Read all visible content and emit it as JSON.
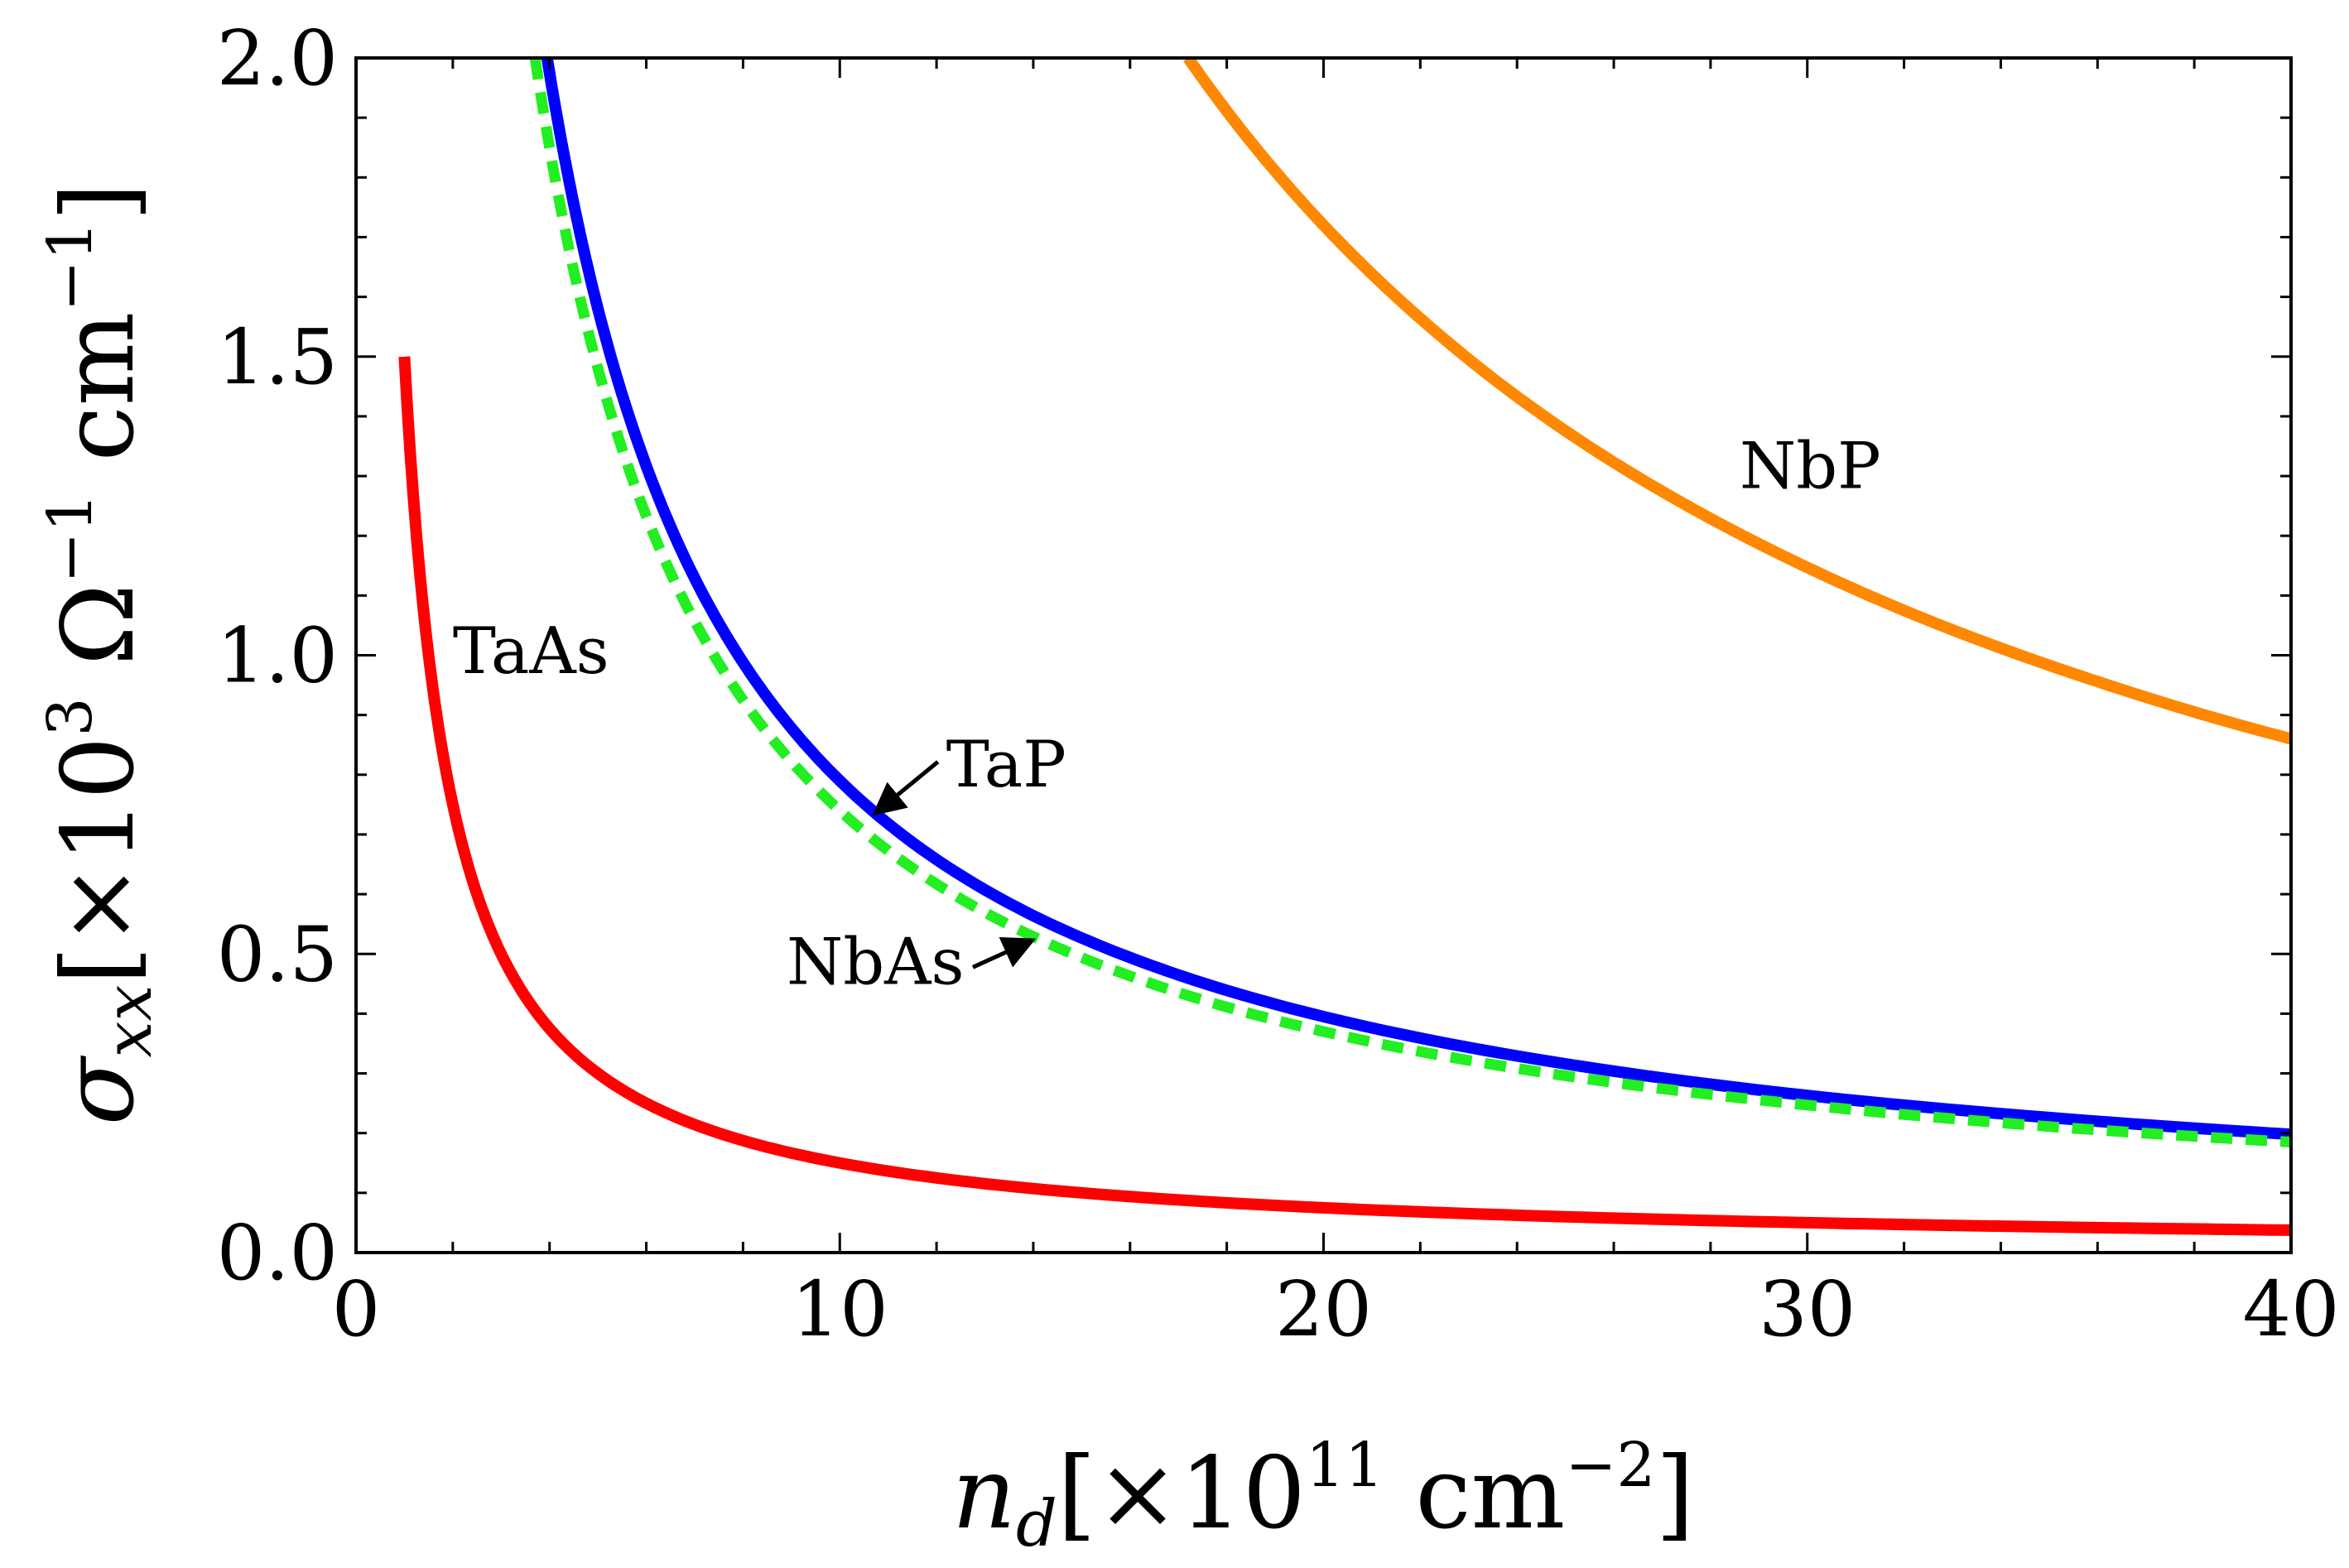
{
  "chart_data": {
    "type": "line",
    "xlabel": {
      "symbol": "n",
      "subscript": "d",
      "bracket_text": "[×10",
      "exponent": "11",
      "unit": " cm",
      "unit_exponent": "−2",
      "close": "]"
    },
    "ylabel": {
      "symbol": "σ",
      "subscript": "xx",
      "bracket_text": "[×10",
      "exponent": "3",
      "unit": " Ω",
      "unit_exponent": "−1",
      "unit2": " cm",
      "unit2_exponent": "−1",
      "close": "]"
    },
    "xlim": [
      0,
      40
    ],
    "ylim": [
      0,
      2.0
    ],
    "x_ticks": [
      0,
      10,
      20,
      30,
      40
    ],
    "x_tick_labels": [
      "0",
      "10",
      "20",
      "30",
      "40"
    ],
    "y_ticks": [
      0,
      0.5,
      1.0,
      1.5,
      2.0
    ],
    "y_tick_labels": [
      "0.0",
      "0.5",
      "1.0",
      "1.5",
      "2.0"
    ],
    "grid": false,
    "series": [
      {
        "name": "TaAs",
        "color": "#ff0000",
        "style": "solid",
        "x": [
          1,
          1.2,
          1.5,
          2,
          2.5,
          3,
          4,
          5,
          6,
          8,
          10,
          12,
          15,
          20,
          25,
          30,
          35,
          40
        ],
        "y": [
          1.5,
          1.25,
          1.0,
          0.75,
          0.6,
          0.5,
          0.375,
          0.3,
          0.25,
          0.1875,
          0.15,
          0.125,
          0.1,
          0.075,
          0.06,
          0.05,
          0.043,
          0.0375
        ]
      },
      {
        "name": "TaP",
        "color": "#0000ff",
        "style": "solid",
        "x": [
          3.95,
          4.5,
          5,
          6,
          7,
          8,
          9,
          10,
          12,
          14,
          16,
          18,
          20,
          25,
          30,
          35,
          40
        ],
        "y": [
          2.0,
          1.756,
          1.58,
          1.317,
          1.129,
          0.988,
          0.878,
          0.79,
          0.658,
          0.564,
          0.494,
          0.439,
          0.395,
          0.316,
          0.263,
          0.226,
          0.198
        ]
      },
      {
        "name": "NbAs",
        "color": "#22ee22",
        "style": "dashed",
        "x": [
          3.7,
          4.5,
          5,
          6,
          7,
          8,
          9,
          10,
          12,
          14,
          16,
          18,
          20,
          25,
          30,
          35,
          40
        ],
        "y": [
          2.0,
          1.644,
          1.48,
          1.233,
          1.057,
          0.925,
          0.822,
          0.74,
          0.617,
          0.529,
          0.463,
          0.411,
          0.37,
          0.296,
          0.247,
          0.211,
          0.185
        ]
      },
      {
        "name": "NbP",
        "color": "#ff8800",
        "style": "solid",
        "x": [
          17.2,
          18,
          20,
          22,
          24,
          26,
          28,
          30,
          32,
          34,
          36,
          38,
          40
        ],
        "y": [
          2.0,
          1.911,
          1.72,
          1.564,
          1.433,
          1.323,
          1.229,
          1.147,
          1.075,
          1.012,
          0.956,
          0.905,
          0.86
        ]
      }
    ],
    "annotations": [
      {
        "text": "TaAs",
        "x": 2.0,
        "y": 0.97
      },
      {
        "text": "NbP",
        "x": 28.6,
        "y": 1.28
      },
      {
        "text": "TaP",
        "x": 12.2,
        "y": 0.78,
        "arrow_to": [
          10.8,
          0.74
        ]
      },
      {
        "text": "NbAs",
        "x": 8.9,
        "y": 0.45,
        "arrow_to": [
          13.9,
          0.52
        ]
      }
    ]
  }
}
